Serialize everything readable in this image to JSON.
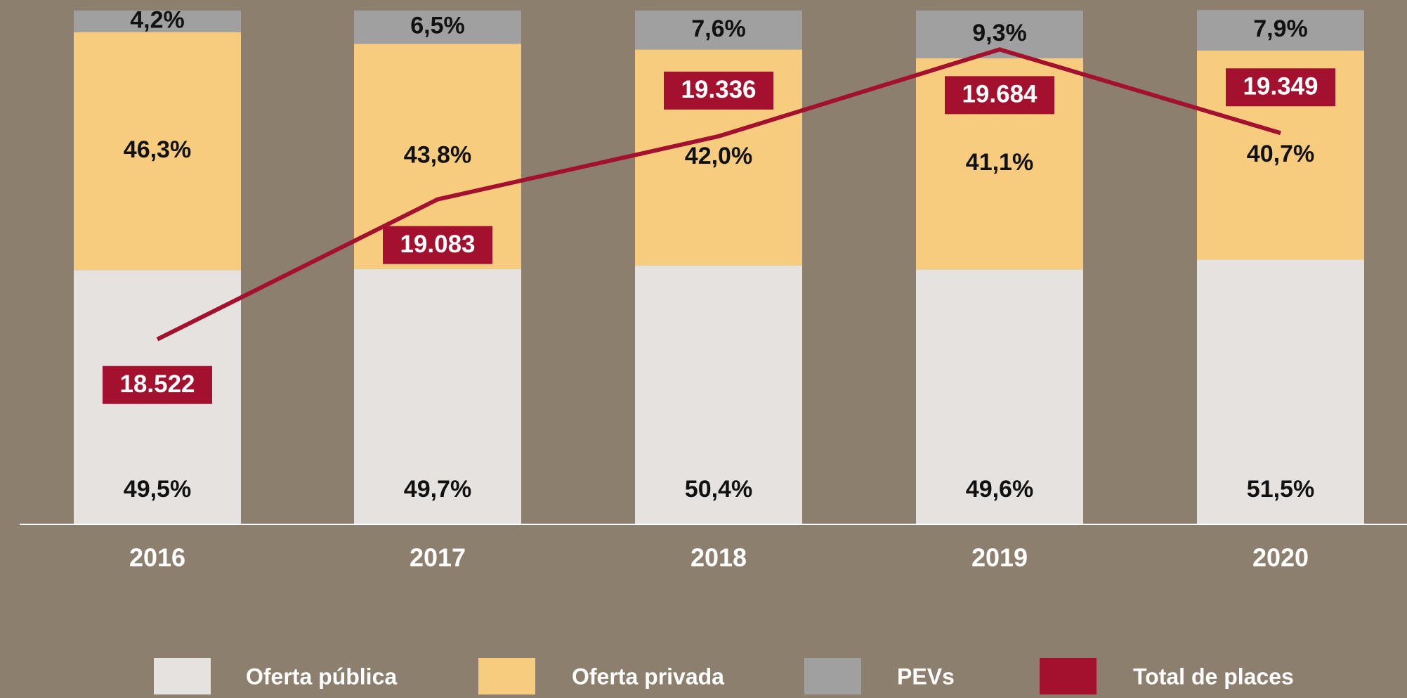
{
  "chart_data": {
    "type": "stacked_bar_line",
    "categories": [
      "2016",
      "2017",
      "2018",
      "2019",
      "2020"
    ],
    "ylim": [
      0,
      100
    ],
    "series": [
      {
        "name": "Oferta pública",
        "color": "#e6e2df",
        "values": [
          49.5,
          49.7,
          50.4,
          49.6,
          51.5
        ],
        "value_labels": [
          "49,5%",
          "49,7%",
          "50,4%",
          "49,6%",
          "51,5%"
        ]
      },
      {
        "name": "Oferta privada",
        "color": "#f8cc7e",
        "values": [
          46.3,
          43.8,
          42.0,
          41.1,
          40.7
        ],
        "value_labels": [
          "46,3%",
          "43,8%",
          "42,0%",
          "41,1%",
          "40,7%"
        ]
      },
      {
        "name": "PEVs",
        "color": "#a0a0a0",
        "values": [
          4.2,
          6.5,
          7.6,
          9.3,
          7.9
        ],
        "value_labels": [
          "4,2%",
          "6,5%",
          "7,6%",
          "9,3%",
          "7,9%"
        ]
      },
      {
        "name": "Total de places",
        "color": "#a3112e",
        "axis": "y2",
        "type": "line",
        "values": [
          18522,
          19083,
          19336,
          19684,
          19349
        ],
        "value_labels": [
          "18.522",
          "19.083",
          "19.336",
          "19.684",
          "19.349"
        ]
      }
    ],
    "y2lim": [
      17780,
      19840
    ]
  }
}
